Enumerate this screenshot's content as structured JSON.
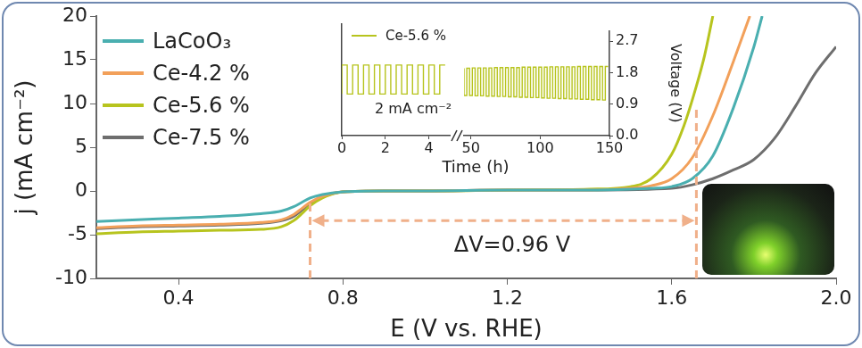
{
  "chart_data": [
    {
      "type": "line",
      "xlabel": "E (V vs. RHE)",
      "ylabel": "j (mA cm⁻²)",
      "xlim": [
        0.2,
        2.0
      ],
      "xticks": [
        0.4,
        0.8,
        1.2,
        1.6,
        {
          "value": 2,
          "label": "2.0"
        }
      ],
      "ylim": [
        -10,
        20
      ],
      "yticks": [
        -10,
        -5,
        0,
        5,
        10,
        15,
        20
      ],
      "grid": false,
      "legend": "upper left",
      "marker": "none",
      "line_style": "solid",
      "annotations": [
        {
          "text": "ΔV=0.96 V",
          "x_start": 0.72,
          "x_end": 1.66
        }
      ],
      "series": [
        {
          "name": "LaCoO₃",
          "color": "#4aafb0",
          "x": [
            0.2,
            0.3,
            0.4,
            0.5,
            0.6,
            0.65,
            0.68,
            0.7,
            0.72,
            0.75,
            0.8,
            0.9,
            1.0,
            1.2,
            1.4,
            1.5,
            1.55,
            1.6,
            1.65,
            1.7,
            1.75,
            1.8,
            1.82
          ],
          "values": [
            -3.5,
            -3.3,
            -3.1,
            -2.9,
            -2.6,
            -2.3,
            -1.8,
            -1.3,
            -0.8,
            -0.4,
            -0.1,
            0,
            0,
            0.1,
            0.1,
            0.2,
            0.3,
            0.5,
            1.4,
            4.0,
            9.5,
            16.5,
            20
          ]
        },
        {
          "name": "Ce-4.2 %",
          "color": "#f2a05a",
          "x": [
            0.2,
            0.3,
            0.4,
            0.5,
            0.6,
            0.65,
            0.68,
            0.7,
            0.72,
            0.75,
            0.8,
            0.9,
            1.0,
            1.2,
            1.4,
            1.5,
            1.55,
            1.6,
            1.65,
            1.7,
            1.75,
            1.79
          ],
          "values": [
            -4.2,
            -4.0,
            -3.9,
            -3.8,
            -3.6,
            -3.3,
            -2.7,
            -2.0,
            -1.3,
            -0.6,
            -0.1,
            0,
            0,
            0.1,
            0.1,
            0.3,
            0.6,
            1.4,
            3.8,
            8.6,
            14.8,
            20
          ]
        },
        {
          "name": "Ce-5.6 %",
          "color": "#b7c41e",
          "x": [
            0.2,
            0.3,
            0.4,
            0.5,
            0.6,
            0.65,
            0.68,
            0.7,
            0.72,
            0.75,
            0.8,
            0.9,
            1.0,
            1.2,
            1.4,
            1.5,
            1.55,
            1.6,
            1.63,
            1.66,
            1.68,
            1.7
          ],
          "values": [
            -4.9,
            -4.7,
            -4.6,
            -4.5,
            -4.4,
            -4.1,
            -3.4,
            -2.6,
            -1.7,
            -0.8,
            -0.1,
            0,
            0,
            0.1,
            0.2,
            0.5,
            1.4,
            4.2,
            7.5,
            12.0,
            15.5,
            20
          ]
        },
        {
          "name": "Ce-7.5 %",
          "color": "#6e6e6e",
          "x": [
            0.2,
            0.3,
            0.4,
            0.5,
            0.6,
            0.65,
            0.68,
            0.7,
            0.72,
            0.75,
            0.8,
            0.9,
            1.0,
            1.2,
            1.4,
            1.6,
            1.65,
            1.7,
            1.75,
            1.8,
            1.85,
            1.9,
            1.95,
            2.0
          ],
          "values": [
            -4.3,
            -4.1,
            -4.0,
            -3.9,
            -3.7,
            -3.4,
            -2.9,
            -2.2,
            -1.5,
            -0.7,
            -0.1,
            0,
            0,
            0.1,
            0.1,
            0.3,
            0.7,
            1.4,
            2.4,
            3.6,
            6.0,
            9.6,
            13.5,
            16.5
          ]
        }
      ]
    },
    {
      "type": "line",
      "xlabel": "Time (h)",
      "ylabel": "Voltage (V)",
      "xlim": [
        0,
        150
      ],
      "x_break": [
        5,
        45
      ],
      "xticks": [
        0,
        2,
        4,
        50,
        100,
        150
      ],
      "ylim": [
        0,
        3.0
      ],
      "yticks": [
        {
          "value": 0,
          "label": "0.0"
        },
        0.9,
        1.8,
        2.7
      ],
      "grid": false,
      "legend": "upper left",
      "marker": "none",
      "line_style": "steps",
      "annotations": [
        {
          "text": "2 mA cm⁻²"
        }
      ],
      "series": [
        {
          "name": "Ce-5.6 %",
          "color": "#b7c41e",
          "x": [
            0,
            0.25,
            0.5,
            0.75,
            1,
            1.25,
            1.5,
            1.75,
            2,
            2.25,
            2.5,
            2.75,
            3,
            3.25,
            3.5,
            3.75,
            4,
            4.25,
            4.5,
            4.75,
            45,
            47,
            49,
            51,
            53,
            55,
            57,
            59,
            61,
            63,
            65,
            67,
            69,
            71,
            73,
            75,
            77,
            79,
            81,
            83,
            85,
            87,
            89,
            91,
            93,
            95,
            97,
            99,
            101,
            103,
            105,
            107,
            109,
            111,
            113,
            115,
            117,
            119,
            121,
            123,
            125,
            127,
            129,
            131,
            133,
            135,
            137,
            139,
            141,
            143,
            145,
            147,
            149
          ],
          "values": [
            1.12,
            1.9,
            1.12,
            1.9,
            1.12,
            1.9,
            1.12,
            1.9,
            1.12,
            1.9,
            1.12,
            1.9,
            1.12,
            1.9,
            1.12,
            1.9,
            1.12,
            1.9,
            1.12,
            1.9,
            1.93,
            1.15,
            1.93,
            1.15,
            1.94,
            1.14,
            1.94,
            1.14,
            1.94,
            1.13,
            1.94,
            1.13,
            1.95,
            1.12,
            1.95,
            1.12,
            1.95,
            1.11,
            1.95,
            1.11,
            1.95,
            1.1,
            1.96,
            1.1,
            1.96,
            1.09,
            1.96,
            1.09,
            1.96,
            1.08,
            1.96,
            1.07,
            1.97,
            1.07,
            1.97,
            1.06,
            1.97,
            1.06,
            1.97,
            1.05,
            1.97,
            1.05,
            1.98,
            1.04,
            1.98,
            1.04,
            1.98,
            1.03,
            1.98,
            1.03,
            1.98,
            1.02,
            1.98
          ]
        }
      ]
    }
  ]
}
